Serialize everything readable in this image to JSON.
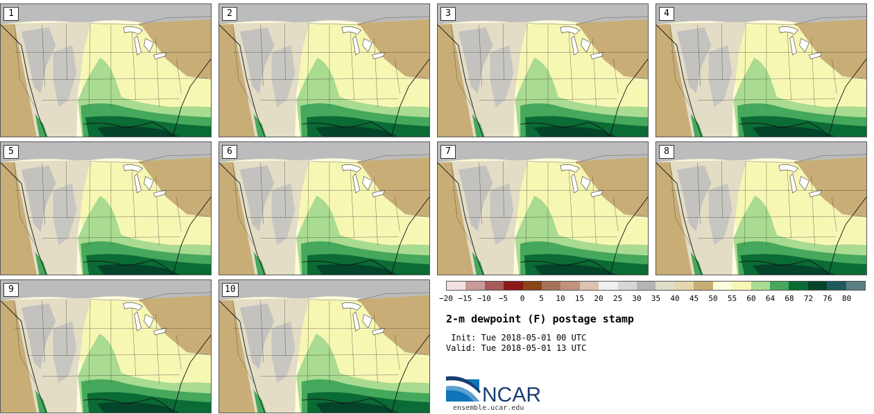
{
  "members": [
    "1",
    "2",
    "3",
    "4",
    "5",
    "6",
    "7",
    "8",
    "9",
    "10"
  ],
  "colorbar": {
    "colors": [
      "#f3e1e1",
      "#c99a9a",
      "#a65a5a",
      "#8a1a1a",
      "#8a4415",
      "#a6735a",
      "#c2927a",
      "#dbc3b2",
      "#efefef",
      "#d7d7d7",
      "#b5b5b5",
      "#e0ddc9",
      "#e5d6ad",
      "#c7ad74",
      "#fdfddc",
      "#f7f7b4",
      "#a9db90",
      "#45a85c",
      "#0a6b34",
      "#04442a",
      "#1f5a5e",
      "#5b7f80"
    ],
    "ticks": [
      "−20",
      "−15",
      "−10",
      "−5",
      "0",
      "5",
      "10",
      "15",
      "20",
      "25",
      "30",
      "35",
      "40",
      "45",
      "50",
      "55",
      "60",
      "64",
      "68",
      "72",
      "76",
      "80"
    ]
  },
  "title": "2-m dewpoint (F) postage stamp",
  "init_text": " Init: Tue 2018-05-01 00 UTC",
  "valid_text": "Valid: Tue 2018-05-01 13 UTC",
  "logo": {
    "brand": "NCAR",
    "url": "ensemble.ucar.edu",
    "brand_color": "#1a3d73",
    "swoosh_color": "#0f74b8"
  },
  "map_colors": {
    "land_dry": "#e3ddc6",
    "mountain": "#bdbdbd",
    "plains": "#c8ae76",
    "moist": "#f7f7b4",
    "green1": "#a9db90",
    "green2": "#45a85c",
    "green3": "#0a6b34",
    "green4": "#04442a",
    "ocean_pale": "#fdfddc",
    "canada": "#bcbcbc",
    "border": "#333333"
  }
}
